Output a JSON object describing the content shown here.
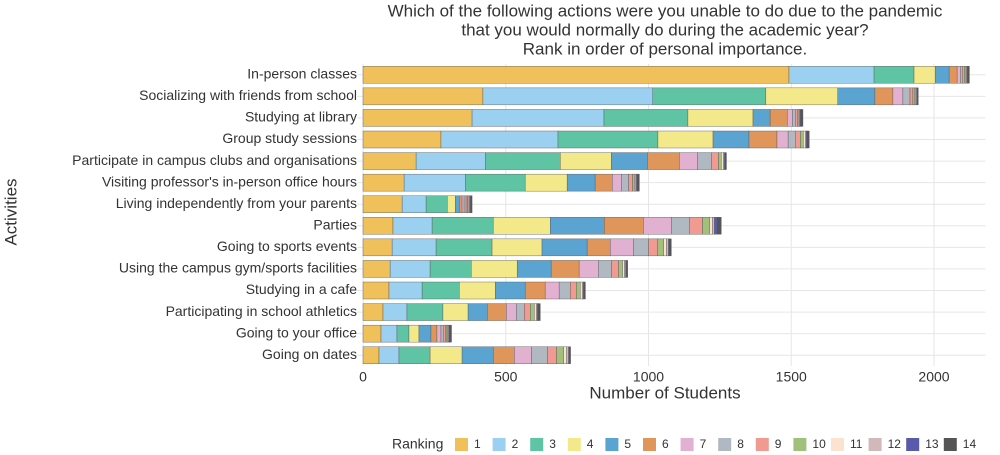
{
  "chart_data": {
    "type": "stacked-bar-horizontal",
    "title": [
      "Which of the following actions were you unable to do due to the pandemic",
      "that you would normally do during the academic year?",
      "Rank in order of personal importance."
    ],
    "x_label": "Number of Students",
    "y_label": "Activities",
    "legend_title": "Ranking",
    "categories": [
      "In-person classes",
      "Socializing with friends from school",
      "Studying at library",
      "Group study sessions",
      "Participate in campus clubs and organisations",
      "Visiting professor's in-person office hours",
      "Living independently from your parents",
      "Parties",
      "Going to sports events",
      "Using the campus gym/sports facilities",
      "Studying in a cafe",
      "Participating in school athletics",
      "Going to your office",
      "Going on dates"
    ],
    "series": [
      {
        "name": "1",
        "color": "#f0c05a",
        "values": [
          1492,
          420,
          382,
          273,
          186,
          144,
          137,
          105,
          102,
          95,
          91,
          70,
          63,
          56
        ]
      },
      {
        "name": "2",
        "color": "#9bd0f0",
        "values": [
          298,
          595,
          462,
          410,
          242,
          214,
          84,
          137,
          154,
          140,
          116,
          84,
          56,
          70
        ]
      },
      {
        "name": "3",
        "color": "#5ec4a4",
        "values": [
          140,
          396,
          294,
          350,
          263,
          210,
          74,
          214,
          196,
          144,
          130,
          126,
          42,
          109
        ]
      },
      {
        "name": "4",
        "color": "#f3e98a",
        "values": [
          74,
          252,
          228,
          193,
          179,
          147,
          28,
          200,
          175,
          161,
          126,
          88,
          35,
          112
        ]
      },
      {
        "name": "5",
        "color": "#5ba3d0",
        "values": [
          49,
          130,
          60,
          126,
          126,
          98,
          14,
          189,
          158,
          119,
          105,
          67,
          42,
          109
        ]
      },
      {
        "name": "6",
        "color": "#e0955a",
        "values": [
          28,
          63,
          60,
          98,
          112,
          60,
          10,
          137,
          81,
          98,
          70,
          67,
          21,
          74
        ]
      },
      {
        "name": "7",
        "color": "#e2b0d0",
        "values": [
          11,
          35,
          18,
          39,
          63,
          32,
          7,
          98,
          81,
          67,
          49,
          35,
          14,
          60
        ]
      },
      {
        "name": "8",
        "color": "#b0b8c2",
        "values": [
          7,
          25,
          10,
          25,
          49,
          25,
          7,
          63,
          53,
          46,
          39,
          28,
          10,
          56
        ]
      },
      {
        "name": "9",
        "color": "#f19a92",
        "values": [
          7,
          10,
          7,
          18,
          25,
          14,
          5,
          46,
          32,
          25,
          21,
          21,
          7,
          32
        ]
      },
      {
        "name": "10",
        "color": "#a0c07c",
        "values": [
          4,
          7,
          4,
          10,
          10,
          7,
          3,
          25,
          21,
          14,
          14,
          14,
          4,
          25
        ]
      },
      {
        "name": "11",
        "color": "#fce3d0",
        "values": [
          3,
          3,
          3,
          7,
          7,
          4,
          3,
          10,
          10,
          7,
          7,
          7,
          3,
          10
        ]
      },
      {
        "name": "12",
        "color": "#d2b8b8",
        "values": [
          3,
          3,
          3,
          4,
          4,
          3,
          3,
          7,
          7,
          4,
          4,
          4,
          3,
          7
        ]
      },
      {
        "name": "13",
        "color": "#5a5aaa",
        "values": [
          3,
          3,
          3,
          3,
          3,
          3,
          3,
          10,
          3,
          3,
          3,
          3,
          3,
          3
        ]
      },
      {
        "name": "14",
        "color": "#555555",
        "values": [
          5,
          3,
          7,
          7,
          4,
          7,
          4,
          14,
          7,
          4,
          4,
          7,
          7,
          4
        ]
      }
    ],
    "xlim": [
      -20,
      2180
    ],
    "xticks": [
      0,
      500,
      1000,
      1500,
      2000
    ],
    "grid": true,
    "legend": "bottom"
  }
}
